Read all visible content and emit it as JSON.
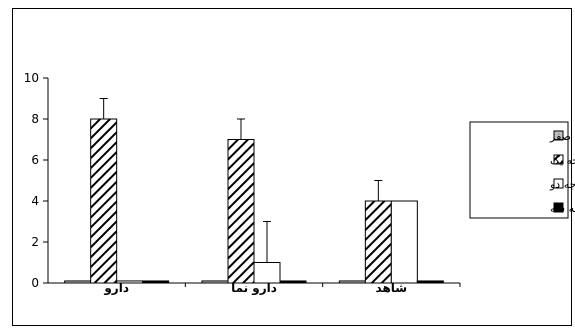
{
  "chart_data": {
    "type": "bar",
    "categories": [
      "دارو",
      "دارو نما",
      "شاهد"
    ],
    "series": [
      {
        "name": "درجه صفر",
        "values": [
          0.1,
          0.1,
          0.1
        ],
        "fill": "gray"
      },
      {
        "name": "درجه یک",
        "values": [
          8,
          7,
          4
        ],
        "errors": [
          1,
          1,
          1
        ],
        "fill": "hatch"
      },
      {
        "name": "درجه دو",
        "values": [
          0.1,
          1,
          4
        ],
        "errors": [
          0,
          2,
          0
        ],
        "fill": "white"
      },
      {
        "name": "درجه سه",
        "values": [
          0.1,
          0.1,
          0.1
        ],
        "fill": "black"
      }
    ],
    "yticks": [
      "0",
      "2",
      "4",
      "6",
      "8",
      "10"
    ],
    "ylim": [
      0,
      10
    ],
    "title": "",
    "xlabel": "",
    "ylabel": "",
    "legend_position": "right",
    "grid": false
  },
  "colors": {
    "gray": "#c0c0c0",
    "white": "#ffffff",
    "black": "#000000",
    "hatch_line": "#000000"
  }
}
